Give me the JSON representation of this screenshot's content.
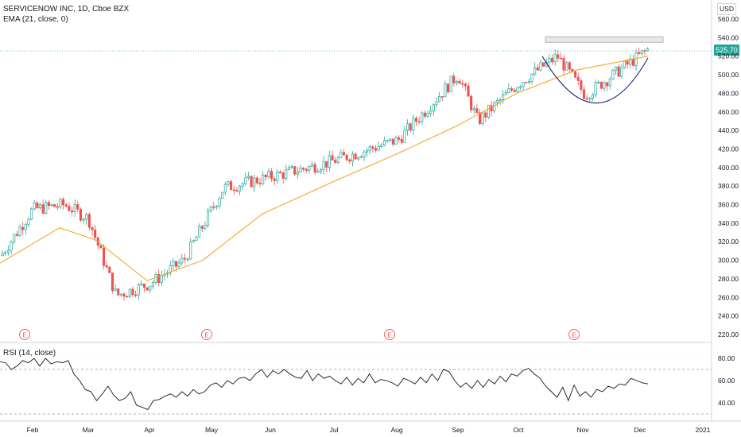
{
  "header": {
    "symbol": "SERVICENOW INC, 1D, Cboe BZX",
    "indicator": "EMA (21, close, 0)",
    "currency": "USD",
    "last_price": "525.70"
  },
  "rsi_panel": {
    "label": "RSI (14, close)",
    "ticks": [
      "80.00",
      "60.00",
      "40.00"
    ]
  },
  "price_axis": {
    "ticks": [
      "560.00",
      "540.00",
      "520.00",
      "500.00",
      "480.00",
      "460.00",
      "440.00",
      "420.00",
      "400.00",
      "380.00",
      "360.00",
      "340.00",
      "320.00",
      "300.00",
      "280.00",
      "260.00",
      "240.00",
      "220.00"
    ]
  },
  "time_axis": {
    "labels": [
      "Feb",
      "Mar",
      "Apr",
      "May",
      "Jun",
      "Jul",
      "Aug",
      "Sep",
      "Oct",
      "Nov",
      "Dec",
      "2021"
    ]
  },
  "earnings": {
    "marker": "E",
    "count": 4
  },
  "colors": {
    "up": "#26a69a",
    "down": "#ef5350",
    "ema": "#f5a623",
    "rsi": "#131722",
    "accent": "#26a69a",
    "pattern": "#1a237e"
  },
  "chart_data": [
    {
      "type": "candlestick",
      "title": "SERVICENOW INC, 1D, Cboe BZX",
      "ylim": [
        220,
        560
      ],
      "series": [
        {
          "name": "EMA (21, close, 0)",
          "x": [
            "Jan",
            "Feb",
            "Mar",
            "Apr",
            "May",
            "Jun",
            "Jul",
            "Aug",
            "Sep",
            "Oct",
            "Nov",
            "Dec"
          ],
          "values": [
            297,
            335,
            322,
            278,
            300,
            350,
            385,
            415,
            445,
            480,
            505,
            520
          ]
        }
      ],
      "close_path": {
        "x": [
          "Jan",
          "early Feb",
          "mid Feb",
          "Mar",
          "mid Mar",
          "Apr",
          "early May",
          "mid May",
          "Jun",
          "Jul",
          "Aug",
          "Sep",
          "mid Sep",
          "Oct",
          "late Oct",
          "Nov",
          "Dec"
        ],
        "values": [
          305,
          355,
          360,
          345,
          262,
          275,
          300,
          378,
          388,
          405,
          430,
          500,
          450,
          490,
          520,
          478,
          528
        ]
      },
      "annotations": [
        "cup pattern Oct–Dec",
        "resistance band ~540"
      ]
    },
    {
      "type": "line",
      "title": "RSI (14, close)",
      "ylim": [
        30,
        85
      ],
      "series": [
        {
          "name": "RSI (14, close)",
          "values": [
            77,
            76,
            70,
            73,
            78,
            76,
            80,
            73,
            80,
            75,
            77,
            76,
            78,
            66,
            60,
            52,
            50,
            42,
            48,
            55,
            47,
            42,
            44,
            50,
            38,
            36,
            34,
            42,
            43,
            46,
            48,
            45,
            50,
            46,
            52,
            48,
            50,
            56,
            58,
            54,
            60,
            57,
            62,
            63,
            60,
            66,
            70,
            63,
            69,
            66,
            70,
            66,
            63,
            62,
            69,
            60,
            66,
            62,
            64,
            60,
            57,
            63,
            56,
            62,
            58,
            66,
            58,
            61,
            60,
            58,
            55,
            62,
            60,
            57,
            63,
            58,
            66,
            60,
            70,
            68,
            60,
            54,
            58,
            53,
            60,
            54,
            61,
            57,
            64,
            59,
            66,
            64,
            69,
            71,
            66,
            62,
            55,
            50,
            45,
            54,
            42,
            56,
            46,
            50,
            45,
            52,
            50,
            55,
            53,
            57,
            56,
            62,
            60,
            58,
            57
          ]
        }
      ]
    }
  ]
}
